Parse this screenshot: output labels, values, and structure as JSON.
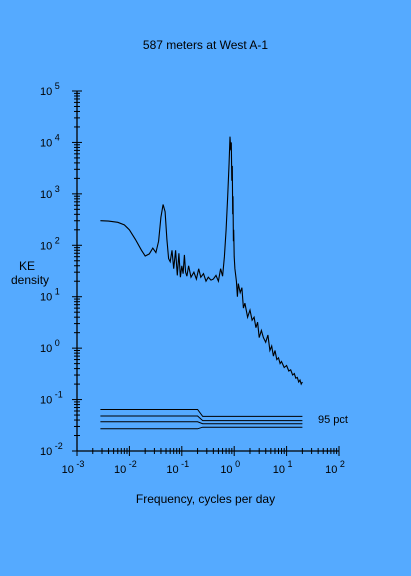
{
  "chart_data": {
    "type": "line",
    "title": "587 meters at West A-1",
    "xlabel": "Frequency, cycles per day",
    "ylabel_line1": "KE",
    "ylabel_line2": "density",
    "xscale": "log",
    "yscale": "log",
    "xlim": [
      0.001,
      100
    ],
    "ylim": [
      0.01,
      100000
    ],
    "x_ticks": [
      {
        "base": "10",
        "exp": "-3"
      },
      {
        "base": "10",
        "exp": "-2"
      },
      {
        "base": "10",
        "exp": "-1"
      },
      {
        "base": "10",
        "exp": "0"
      },
      {
        "base": "10",
        "exp": "1"
      },
      {
        "base": "10",
        "exp": "2"
      }
    ],
    "y_ticks": [
      {
        "base": "10",
        "exp": "-2"
      },
      {
        "base": "10",
        "exp": "-1"
      },
      {
        "base": "10",
        "exp": "0"
      },
      {
        "base": "10",
        "exp": "1"
      },
      {
        "base": "10",
        "exp": "2"
      },
      {
        "base": "10",
        "exp": "3"
      },
      {
        "base": "10",
        "exp": "4"
      },
      {
        "base": "10",
        "exp": "5"
      }
    ],
    "series": [
      {
        "x": [
          0.0028,
          0.004,
          0.006,
          0.008,
          0.01,
          0.013,
          0.017,
          0.02,
          0.024,
          0.028,
          0.032,
          0.036,
          0.04,
          0.044,
          0.048,
          0.052,
          0.056,
          0.06,
          0.065,
          0.07,
          0.076,
          0.082,
          0.088,
          0.094,
          0.1,
          0.106,
          0.112,
          0.118,
          0.125,
          0.135,
          0.15,
          0.17,
          0.19,
          0.21,
          0.23,
          0.26,
          0.29,
          0.32,
          0.36,
          0.4,
          0.45,
          0.5,
          0.55,
          0.6,
          0.65,
          0.7,
          0.75,
          0.8,
          0.83,
          0.86,
          0.88,
          0.9,
          0.92,
          0.935,
          0.95,
          0.965,
          0.98,
          1.0,
          1.03,
          1.06,
          1.1,
          1.15,
          1.2,
          1.3,
          1.4,
          1.5,
          1.6,
          1.8,
          2.0,
          2.2,
          2.4,
          2.6,
          2.8,
          3.0,
          3.3,
          3.6,
          4.0,
          4.4,
          4.8,
          5.2,
          5.6,
          6.0,
          6.5,
          7.0,
          7.5,
          8.0,
          9.0,
          10.0,
          11.0,
          12.0,
          13.0,
          14.0,
          15.0,
          16.0,
          17.0,
          18.0,
          19.0,
          20.0
        ],
        "y": [
          300,
          295,
          280,
          250,
          200,
          130,
          80,
          62,
          68,
          88,
          72,
          120,
          350,
          620,
          450,
          130,
          55,
          48,
          80,
          35,
          80,
          26,
          70,
          24,
          40,
          28,
          65,
          30,
          25,
          40,
          24,
          30,
          22,
          35,
          24,
          28,
          20,
          24,
          21,
          22,
          26,
          20,
          35,
          25,
          60,
          200,
          900,
          4000,
          13000,
          7000,
          10000,
          1800,
          3500,
          400,
          900,
          120,
          200,
          60,
          35,
          28,
          20,
          10,
          18,
          12,
          15,
          6,
          7.5,
          4,
          5.5,
          3.5,
          4,
          2.5,
          3.2,
          1.6,
          2.2,
          1.6,
          1.3,
          1.8,
          0.9,
          1.1,
          0.7,
          0.9,
          0.6,
          0.65,
          0.5,
          0.55,
          0.42,
          0.46,
          0.36,
          0.38,
          0.3,
          0.32,
          0.26,
          0.27,
          0.22,
          0.24,
          0.2,
          0.22
        ]
      }
    ],
    "confidence_label": "95 pct",
    "confidence_lines": [
      {
        "x": [
          0.0028,
          0.2,
          0.25,
          20
        ],
        "y": [
          0.064,
          0.064,
          0.047,
          0.047
        ]
      },
      {
        "x": [
          0.0028,
          0.2,
          0.25,
          20
        ],
        "y": [
          0.048,
          0.048,
          0.039,
          0.039
        ]
      },
      {
        "x": [
          0.0028,
          0.2,
          0.25,
          20
        ],
        "y": [
          0.037,
          0.037,
          0.034,
          0.034
        ]
      },
      {
        "x": [
          0.0028,
          0.2,
          0.25,
          20
        ],
        "y": [
          0.027,
          0.027,
          0.029,
          0.029
        ]
      }
    ]
  }
}
